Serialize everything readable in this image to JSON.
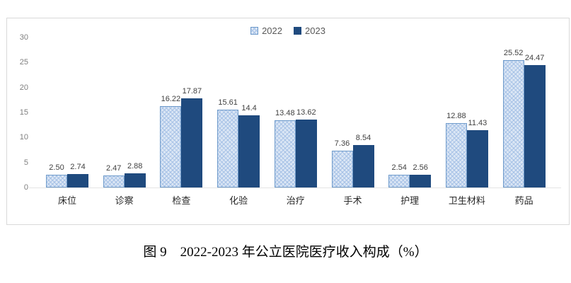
{
  "figure_caption": "图 9　2022-2023 年公立医院医疗收入构成（%）",
  "colors": {
    "series_2022_fill": "#dce7f5",
    "series_2022_hatch": "#a7c2e6",
    "series_2022_border": "#6f9bcb",
    "series_2023_fill": "#1f4a7e",
    "chart_border": "#d9d9d9",
    "tick_label": "#7f7f7f",
    "value_label": "#404040"
  },
  "chart_data": {
    "type": "bar",
    "title": "",
    "categories": [
      "床位",
      "诊察",
      "检查",
      "化验",
      "治疗",
      "手术",
      "护理",
      "卫生材料",
      "药品"
    ],
    "series": [
      {
        "name": "2022",
        "values": [
          2.5,
          2.47,
          16.22,
          15.61,
          13.48,
          7.36,
          2.54,
          12.88,
          25.52
        ],
        "labels": [
          "2.50",
          "2.47",
          "16.22",
          "15.61",
          "13.48",
          "7.36",
          "2.54",
          "12.88",
          "25.52"
        ]
      },
      {
        "name": "2023",
        "values": [
          2.74,
          2.88,
          17.87,
          14.4,
          13.62,
          8.54,
          2.56,
          11.43,
          24.47
        ],
        "labels": [
          "2.74",
          "2.88",
          "17.87",
          "14.4",
          "13.62",
          "8.54",
          "2.56",
          "11.43",
          "24.47"
        ]
      }
    ],
    "xlabel": "",
    "ylabel": "",
    "ylim": [
      0,
      30
    ],
    "yticks": [
      0,
      5,
      10,
      15,
      20,
      25,
      30
    ],
    "grid": false,
    "legend_position": "top-center"
  }
}
